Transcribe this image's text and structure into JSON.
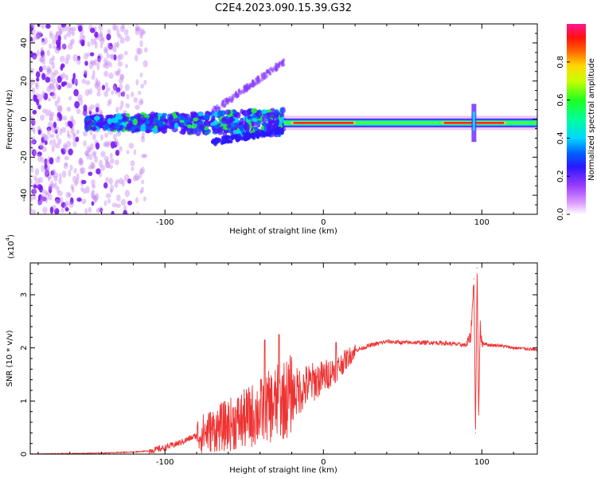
{
  "title": "C2E4.2023.090.15.39.G32",
  "chart_data": [
    {
      "type": "heatmap",
      "xlabel": "Height of straight line (km)",
      "ylabel": "Frequency (Hz)",
      "xlim": [
        -185,
        135
      ],
      "ylim": [
        -50,
        50
      ],
      "x_ticks": [
        -100,
        0,
        100
      ],
      "y_ticks": [
        -40,
        -20,
        0,
        20,
        40
      ],
      "colorbar": {
        "label": "Normalized spectral amplitude",
        "range": [
          0,
          1
        ],
        "ticks": [
          0.0,
          0.2,
          0.4,
          0.6,
          0.8
        ]
      },
      "features": {
        "noise_region_x": [
          -185,
          -120
        ],
        "carrier_frequency_hz": -2,
        "scattered_band_x": [
          -150,
          -25
        ],
        "diverging_branches_x": [
          -70,
          -25
        ],
        "strong_carrier_segments_x": [
          [
            -20,
            20
          ],
          [
            75,
            95
          ],
          [
            95,
            115
          ]
        ],
        "spike_x": 95
      }
    },
    {
      "type": "line",
      "xlabel": "Height of straight line (km)",
      "ylabel": "SNR (10 * v/v)",
      "y_multiplier": "(x10^4)",
      "y_multiplier_base": "(x10",
      "y_multiplier_exp": "4",
      "y_multiplier_close": ")",
      "xlim": [
        -185,
        135
      ],
      "ylim": [
        0,
        3.6
      ],
      "x_ticks": [
        -100,
        0,
        100
      ],
      "y_ticks": [
        0,
        1,
        2,
        3
      ],
      "color": "#ee3333",
      "series": [
        {
          "name": "SNR",
          "x": [
            -185,
            -160,
            -140,
            -120,
            -110,
            -100,
            -90,
            -80,
            -70,
            -60,
            -50,
            -40,
            -30,
            -20,
            -10,
            0,
            10,
            20,
            30,
            40,
            50,
            60,
            70,
            80,
            90,
            93,
            95,
            96,
            97,
            98,
            99,
            100,
            105,
            110,
            120,
            130,
            135
          ],
          "y": [
            0.0,
            0.01,
            0.02,
            0.04,
            0.06,
            0.12,
            0.22,
            0.35,
            0.45,
            0.55,
            0.65,
            0.8,
            0.95,
            1.1,
            1.3,
            1.45,
            1.65,
            1.95,
            2.05,
            2.12,
            2.1,
            2.1,
            2.1,
            2.08,
            2.05,
            2.2,
            3.3,
            0.4,
            3.5,
            0.8,
            2.4,
            2.1,
            2.05,
            2.05,
            2.0,
            1.98,
            1.95
          ]
        }
      ],
      "noise_amplitude_peaks": [
        {
          "x": -28,
          "y": 2.25
        },
        {
          "x": -37,
          "y": 2.15
        },
        {
          "x": 8,
          "y": 2.1
        }
      ]
    }
  ]
}
